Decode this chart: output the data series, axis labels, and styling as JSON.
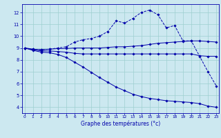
{
  "xlabel": "Graphe des températures (°c)",
  "bg_color": "#cce8f0",
  "grid_color": "#9ecfcf",
  "line_color": "#0000aa",
  "x_ticks": [
    0,
    1,
    2,
    3,
    4,
    5,
    6,
    7,
    8,
    9,
    10,
    11,
    12,
    13,
    14,
    15,
    16,
    17,
    18,
    19,
    20,
    21,
    22,
    23
  ],
  "y_ticks": [
    4,
    5,
    6,
    7,
    8,
    9,
    10,
    11,
    12
  ],
  "ylim": [
    3.5,
    12.7
  ],
  "xlim": [
    -0.3,
    23.3
  ],
  "line1_x": [
    0,
    1,
    2,
    3,
    4,
    5,
    6,
    7,
    8,
    9,
    10,
    11,
    12,
    13,
    14,
    15,
    16,
    17,
    18,
    19,
    20,
    21,
    22,
    23
  ],
  "line1_y": [
    9.0,
    8.9,
    8.85,
    8.9,
    9.0,
    9.1,
    9.5,
    9.7,
    9.8,
    10.0,
    10.4,
    11.3,
    11.1,
    11.5,
    12.0,
    12.2,
    11.8,
    10.7,
    10.9,
    9.6,
    9.6,
    8.3,
    7.0,
    5.8
  ],
  "line2_x": [
    0,
    1,
    2,
    3,
    4,
    5,
    6,
    7,
    8,
    9,
    10,
    11,
    12,
    13,
    14,
    15,
    16,
    17,
    18,
    19,
    20,
    21,
    22,
    23
  ],
  "line2_y": [
    9.0,
    8.9,
    8.85,
    8.9,
    8.95,
    8.95,
    9.0,
    9.0,
    9.0,
    9.0,
    9.05,
    9.1,
    9.1,
    9.15,
    9.2,
    9.3,
    9.4,
    9.45,
    9.5,
    9.55,
    9.6,
    9.6,
    9.55,
    9.5
  ],
  "line3_x": [
    0,
    1,
    2,
    3,
    4,
    5,
    6,
    7,
    8,
    9,
    10,
    11,
    12,
    13,
    14,
    15,
    16,
    17,
    18,
    19,
    20,
    21,
    22,
    23
  ],
  "line3_y": [
    9.0,
    8.85,
    8.75,
    8.75,
    8.7,
    8.65,
    8.55,
    8.5,
    8.5,
    8.5,
    8.5,
    8.5,
    8.5,
    8.5,
    8.5,
    8.5,
    8.5,
    8.5,
    8.5,
    8.5,
    8.5,
    8.35,
    8.3,
    8.3
  ],
  "line4_x": [
    0,
    1,
    2,
    3,
    4,
    5,
    6,
    7,
    8,
    9,
    10,
    11,
    12,
    13,
    14,
    15,
    16,
    17,
    18,
    19,
    20,
    21,
    22,
    23
  ],
  "line4_y": [
    9.0,
    8.8,
    8.65,
    8.6,
    8.45,
    8.2,
    7.8,
    7.4,
    6.95,
    6.5,
    6.1,
    5.7,
    5.4,
    5.1,
    4.9,
    4.75,
    4.65,
    4.55,
    4.5,
    4.45,
    4.4,
    4.3,
    4.1,
    4.0
  ]
}
